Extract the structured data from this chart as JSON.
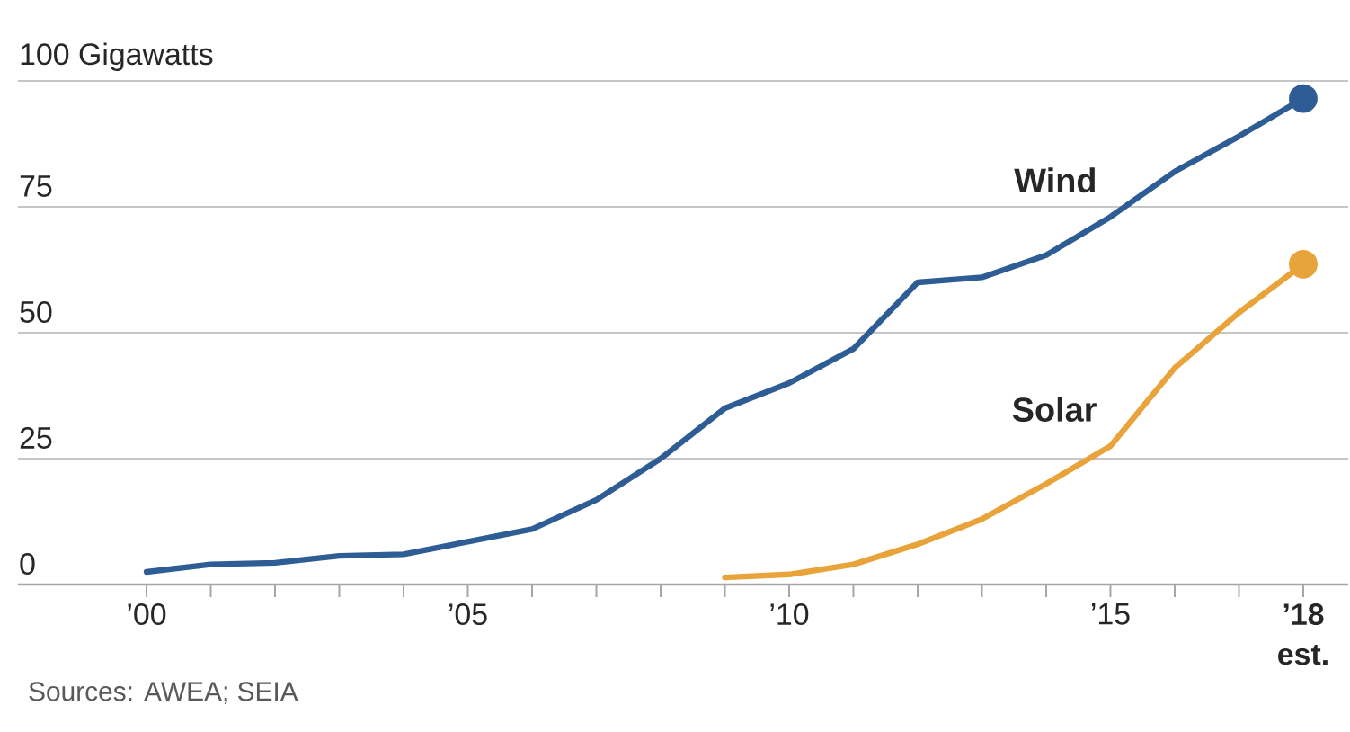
{
  "chart_data": {
    "type": "line",
    "x": [
      2000,
      2001,
      2002,
      2003,
      2004,
      2005,
      2006,
      2007,
      2008,
      2009,
      2010,
      2011,
      2012,
      2013,
      2014,
      2015,
      2016,
      2017,
      2018
    ],
    "series": [
      {
        "name": "Wind",
        "color": "#2e5c94",
        "values": [
          2.5,
          4,
          4.3,
          5.7,
          6,
          8.5,
          11,
          16.8,
          25,
          35,
          40,
          46.8,
          60,
          61,
          65.4,
          73,
          82,
          89,
          96.5
        ]
      },
      {
        "name": "Solar",
        "color": "#e8a33a",
        "x": [
          2009,
          2010,
          2011,
          2012,
          2013,
          2014,
          2015,
          2016,
          2017,
          2018
        ],
        "values": [
          1.4,
          2,
          4,
          8,
          13,
          20,
          27.5,
          43,
          54,
          63.6
        ]
      }
    ],
    "xlim": [
      1998,
      2018.7
    ],
    "xticks": [
      {
        "value": 2000,
        "label": "’00"
      },
      {
        "value": 2001,
        "label": null
      },
      {
        "value": 2002,
        "label": null
      },
      {
        "value": 2003,
        "label": null
      },
      {
        "value": 2004,
        "label": null
      },
      {
        "value": 2005,
        "label": "’05"
      },
      {
        "value": 2006,
        "label": null
      },
      {
        "value": 2007,
        "label": null
      },
      {
        "value": 2008,
        "label": null
      },
      {
        "value": 2009,
        "label": null
      },
      {
        "value": 2010,
        "label": "’10"
      },
      {
        "value": 2011,
        "label": null
      },
      {
        "value": 2012,
        "label": null
      },
      {
        "value": 2013,
        "label": null
      },
      {
        "value": 2014,
        "label": null
      },
      {
        "value": 2015,
        "label": "’15"
      },
      {
        "value": 2016,
        "label": null
      },
      {
        "value": 2017,
        "label": null
      },
      {
        "value": 2018,
        "label": "’18"
      }
    ],
    "ylim": [
      0,
      100
    ],
    "yticks": [
      0,
      25,
      50,
      75,
      {
        "value": 100,
        "label": "100 Gigawatts"
      }
    ],
    "grid": "y",
    "line_style": "solid",
    "annotations": [
      "Sources: AWEA; SEIA",
      "est."
    ]
  }
}
